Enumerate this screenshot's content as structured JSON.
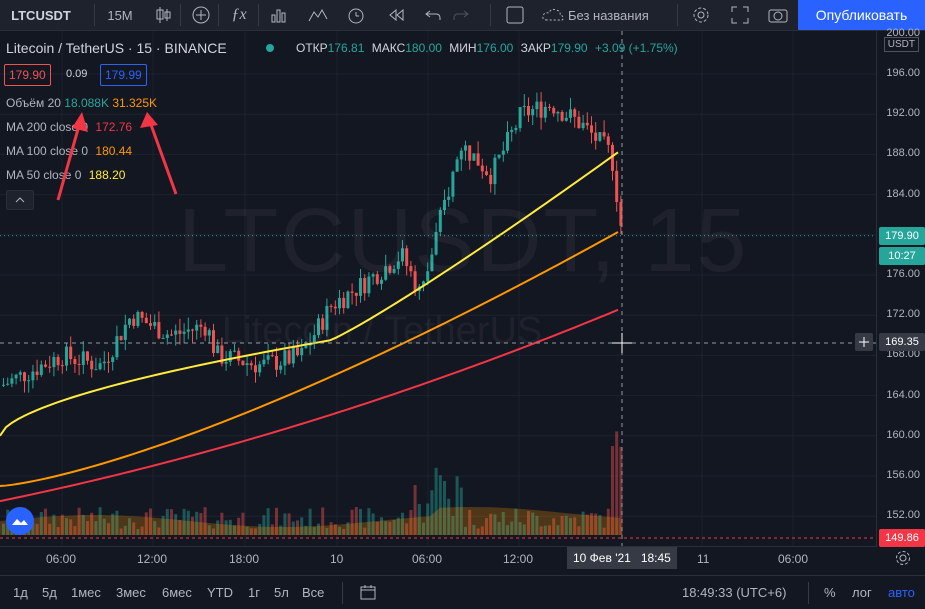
{
  "toolbar": {
    "symbol": "LTCUSDT",
    "interval": "15M",
    "layout_name": "Без названия",
    "publish_label": "Опубликовать",
    "icons": [
      "candles-icon",
      "plus-circle-icon",
      "fx-icon",
      "bars-icon",
      "waves-icon",
      "alarm-icon",
      "replay-icon",
      "undo-icon",
      "redo-icon",
      "square-icon",
      "cloud-icon",
      "gear-icon",
      "fullscreen-icon",
      "camera-icon"
    ]
  },
  "legend": {
    "title": "Litecoin / TetherUS · 15 · BINANCE",
    "ohlc": {
      "open_label": "ОТКР",
      "open": "176.81",
      "high_label": "МАКС",
      "high": "180.00",
      "low_label": "МИН",
      "low": "176.00",
      "close_label": "ЗАКР",
      "close": "179.90",
      "change": "+3.09 (+1.75%)"
    },
    "bid": "179.90",
    "spread": "0.09",
    "ask": "179.99",
    "volume_label": "Объём 20",
    "volume_a": "18.088K",
    "volume_b": "31.325K",
    "ma200_label": "MA 200 close 0",
    "ma200_value": "172.76",
    "ma100_label": "MA 100 close 0",
    "ma100_value": "180.44",
    "ma50_label": "MA 50 close 0",
    "ma50_value": "188.20",
    "watermark": "LTCUSDT, 15",
    "watermark_sub": "Litecoin / TetherUS"
  },
  "price_axis": {
    "currency": "USDT",
    "ticks": [
      "200.00",
      "196.00",
      "192.00",
      "188.00",
      "184.00",
      "180.00",
      "176.00",
      "172.00",
      "168.00",
      "164.00",
      "160.00",
      "156.00",
      "152.00"
    ],
    "last_price": "179.90",
    "countdown": "10:27",
    "crosshair_price": "169.35",
    "low_marker": "149.86"
  },
  "time_axis": {
    "ticks": [
      "06:00",
      "12:00",
      "18:00",
      "10",
      "06:00",
      "12:00",
      "11",
      "06:00"
    ],
    "crosshair_label": "10 Фев '21   18:45"
  },
  "bottom_bar": {
    "ranges": [
      "1д",
      "5д",
      "1мес",
      "3мес",
      "6мес",
      "YTD",
      "1г",
      "5л",
      "Все"
    ],
    "clock": "18:49:33 (UTC+6)",
    "percent": "%",
    "log": "лог",
    "auto": "авто"
  },
  "colors": {
    "up": "#26a69a",
    "down": "#ef5350",
    "ma200": "#f23645",
    "ma100": "#ff9800",
    "ma50": "#ffeb3b",
    "accent": "#2962ff"
  }
}
